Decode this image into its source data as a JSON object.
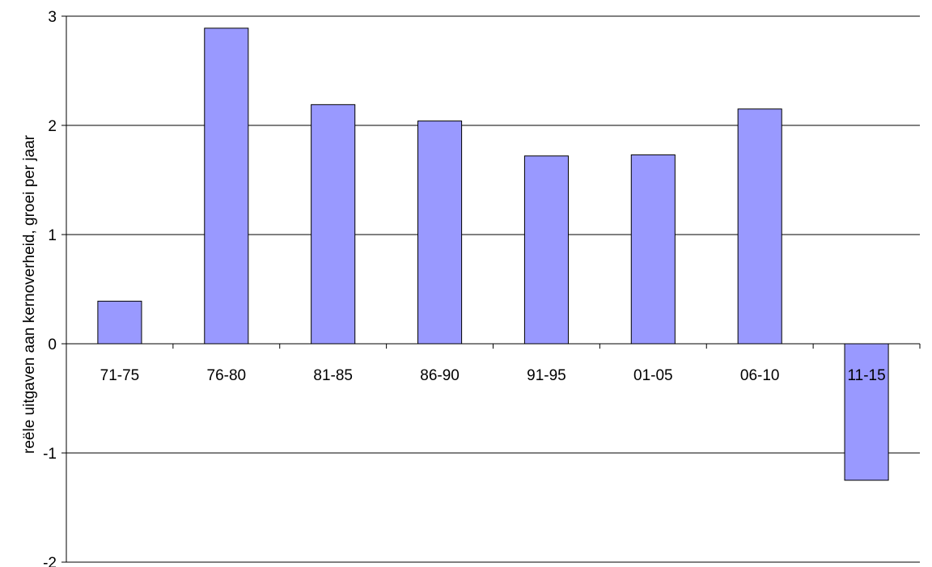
{
  "chart_data": {
    "type": "bar",
    "categories": [
      "71-75",
      "76-80",
      "81-85",
      "86-90",
      "91-95",
      "01-05",
      "06-10",
      "11-15"
    ],
    "values": [
      0.39,
      2.89,
      2.19,
      2.04,
      1.72,
      1.73,
      2.15,
      -1.25
    ],
    "title": "",
    "xlabel": "",
    "ylabel": "reële uitgaven aan kernoverheid, groei per jaar",
    "ylim": [
      -2,
      3
    ],
    "yticks": [
      -2,
      -1,
      0,
      1,
      2,
      3
    ],
    "grid": true,
    "bar_color": "#9999ff",
    "bar_edge_color": "#000000",
    "grid_color": "#000000"
  }
}
